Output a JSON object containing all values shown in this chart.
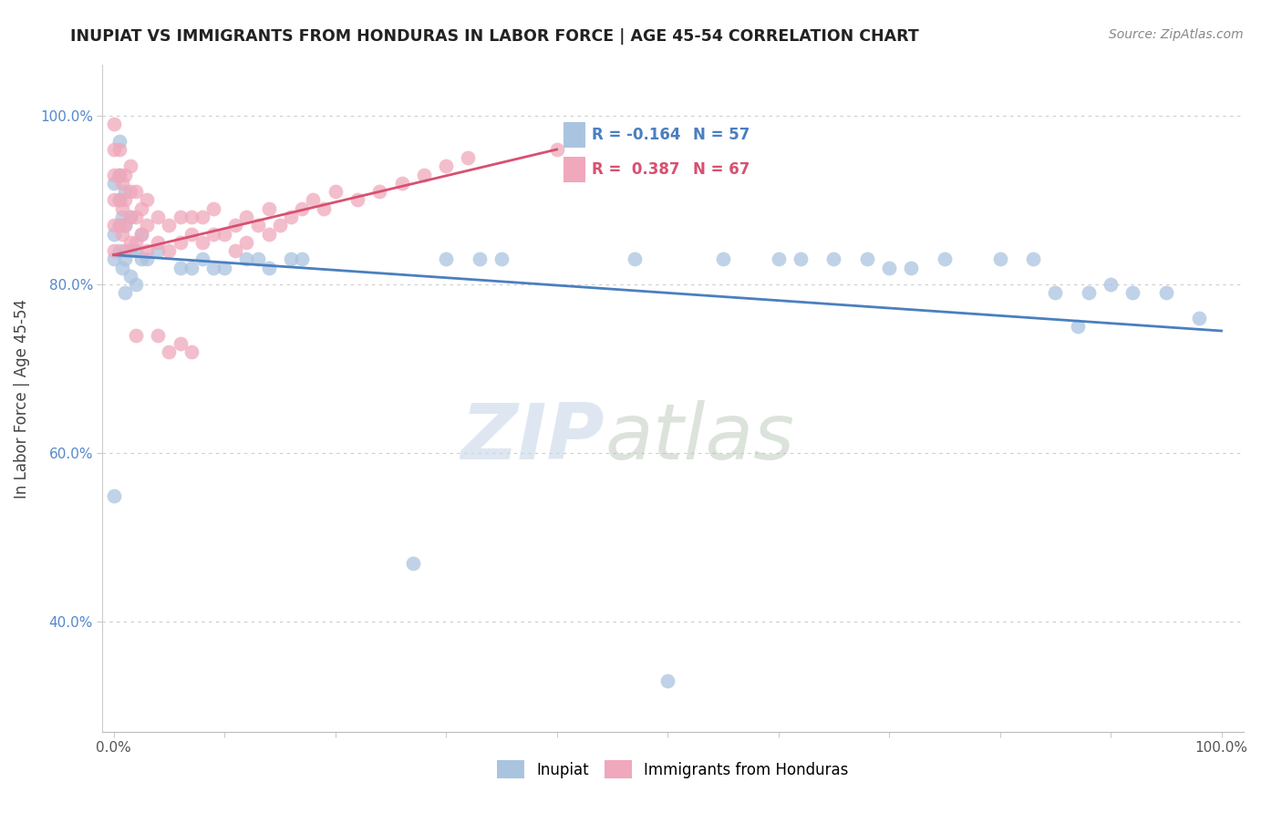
{
  "title": "INUPIAT VS IMMIGRANTS FROM HONDURAS IN LABOR FORCE | AGE 45-54 CORRELATION CHART",
  "source": "Source: ZipAtlas.com",
  "ylabel": "In Labor Force | Age 45-54",
  "legend_blue_label": "Inupiat",
  "legend_pink_label": "Immigrants from Honduras",
  "blue_color": "#aac4e0",
  "pink_color": "#f0a8bc",
  "blue_line_color": "#4a7fc0",
  "pink_line_color": "#d85070",
  "watermark_zip": "ZIP",
  "watermark_atlas": "atlas",
  "xlim_min": -0.01,
  "xlim_max": 1.02,
  "ylim_min": 0.27,
  "ylim_max": 1.06,
  "blue_x": [
    0.0,
    0.0,
    0.0,
    0.0,
    0.005,
    0.005,
    0.005,
    0.005,
    0.005,
    0.008,
    0.008,
    0.01,
    0.01,
    0.01,
    0.01,
    0.015,
    0.015,
    0.015,
    0.02,
    0.02,
    0.025,
    0.025,
    0.03,
    0.04,
    0.06,
    0.07,
    0.08,
    0.09,
    0.1,
    0.12,
    0.13,
    0.14,
    0.16,
    0.17,
    0.27,
    0.3,
    0.33,
    0.35,
    0.47,
    0.5,
    0.55,
    0.6,
    0.62,
    0.65,
    0.68,
    0.7,
    0.72,
    0.75,
    0.8,
    0.83,
    0.85,
    0.87,
    0.88,
    0.9,
    0.92,
    0.95,
    0.98
  ],
  "blue_y": [
    0.55,
    0.83,
    0.86,
    0.92,
    0.84,
    0.87,
    0.9,
    0.93,
    0.97,
    0.82,
    0.88,
    0.79,
    0.83,
    0.87,
    0.91,
    0.81,
    0.84,
    0.88,
    0.8,
    0.84,
    0.83,
    0.86,
    0.83,
    0.84,
    0.82,
    0.82,
    0.83,
    0.82,
    0.82,
    0.83,
    0.83,
    0.82,
    0.83,
    0.83,
    0.47,
    0.83,
    0.83,
    0.83,
    0.83,
    0.33,
    0.83,
    0.83,
    0.83,
    0.83,
    0.83,
    0.82,
    0.82,
    0.83,
    0.83,
    0.83,
    0.79,
    0.75,
    0.79,
    0.8,
    0.79,
    0.79,
    0.76
  ],
  "pink_x": [
    0.0,
    0.0,
    0.0,
    0.0,
    0.0,
    0.0,
    0.005,
    0.005,
    0.005,
    0.005,
    0.008,
    0.008,
    0.008,
    0.01,
    0.01,
    0.01,
    0.01,
    0.015,
    0.015,
    0.015,
    0.015,
    0.02,
    0.02,
    0.02,
    0.02,
    0.025,
    0.025,
    0.03,
    0.03,
    0.03,
    0.04,
    0.04,
    0.04,
    0.05,
    0.05,
    0.05,
    0.06,
    0.06,
    0.06,
    0.07,
    0.07,
    0.07,
    0.08,
    0.08,
    0.09,
    0.09,
    0.1,
    0.11,
    0.11,
    0.12,
    0.12,
    0.13,
    0.14,
    0.14,
    0.15,
    0.16,
    0.17,
    0.18,
    0.19,
    0.2,
    0.22,
    0.24,
    0.26,
    0.28,
    0.3,
    0.32,
    0.4
  ],
  "pink_y": [
    0.84,
    0.87,
    0.9,
    0.93,
    0.96,
    0.99,
    0.87,
    0.9,
    0.93,
    0.96,
    0.86,
    0.89,
    0.92,
    0.84,
    0.87,
    0.9,
    0.93,
    0.85,
    0.88,
    0.91,
    0.94,
    0.85,
    0.88,
    0.91,
    0.74,
    0.86,
    0.89,
    0.84,
    0.87,
    0.9,
    0.85,
    0.88,
    0.74,
    0.84,
    0.87,
    0.72,
    0.85,
    0.88,
    0.73,
    0.86,
    0.88,
    0.72,
    0.85,
    0.88,
    0.86,
    0.89,
    0.86,
    0.84,
    0.87,
    0.85,
    0.88,
    0.87,
    0.86,
    0.89,
    0.87,
    0.88,
    0.89,
    0.9,
    0.89,
    0.91,
    0.9,
    0.91,
    0.92,
    0.93,
    0.94,
    0.95,
    0.96
  ],
  "blue_trend_x": [
    0.0,
    1.0
  ],
  "blue_trend_y_start": 0.835,
  "blue_trend_y_end": 0.745,
  "pink_trend_x": [
    0.0,
    0.4
  ],
  "pink_trend_y_start": 0.835,
  "pink_trend_y_end": 0.96,
  "xtick_labels": [
    "0.0%",
    "",
    "",
    "",
    "",
    "",
    "",
    "",
    "",
    "",
    "100.0%"
  ],
  "ytick_labels": [
    "40.0%",
    "60.0%",
    "80.0%",
    "100.0%"
  ],
  "ytick_vals": [
    0.4,
    0.6,
    0.8,
    1.0
  ]
}
